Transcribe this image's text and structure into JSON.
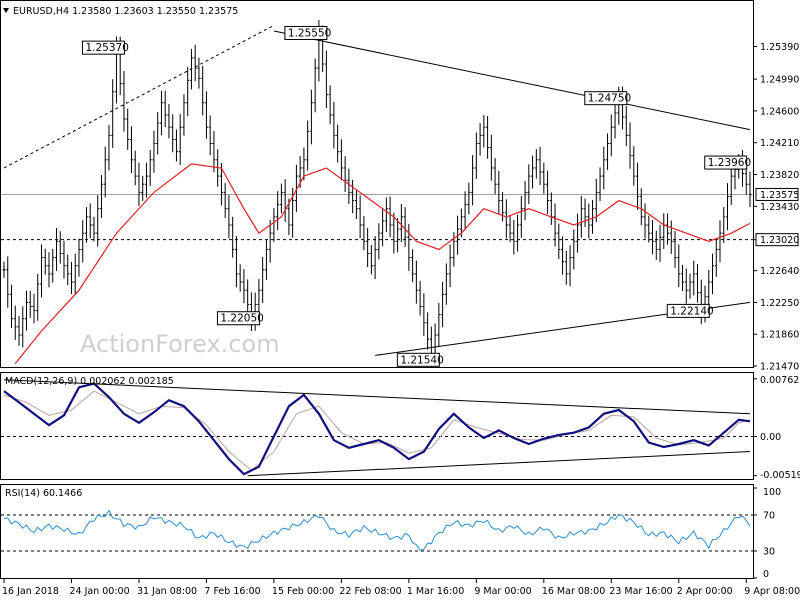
{
  "chart_data": [
    {
      "type": "candlestick",
      "title": "EURUSD,H4  1.23580 1.23603 1.23550 1.23575",
      "watermark": "ActionForex.com",
      "ylim": [
        1.2147,
        1.2574
      ],
      "y_ticks": [
        "1.25390",
        "1.24990",
        "1.24600",
        "1.24210",
        "1.23820",
        "1.23430",
        "1.23020",
        "1.22640",
        "1.22250",
        "1.21860",
        "1.21470"
      ],
      "x_ticks": [
        "16 Jan 2018",
        "24 Jan 00:00",
        "31 Jan 08:00",
        "7 Feb 16:00",
        "15 Feb 00:00",
        "22 Feb 08:00",
        "1 Mar 16:00",
        "9 Mar 00:00",
        "16 Mar 08:00",
        "23 Mar 16:00",
        "2 Apr 00:00",
        "9 Apr 08:00"
      ],
      "current_price": "1.23575",
      "support_level": "1.23020",
      "annotations": [
        "1.25370",
        "1.25550",
        "1.24750",
        "1.23960",
        "1.22050",
        "1.22140",
        "1.21540"
      ],
      "price_path": [
        [
          0,
          1.2265
        ],
        [
          2,
          1.2205
        ],
        [
          4,
          1.2185
        ],
        [
          6,
          1.2225
        ],
        [
          8,
          1.2215
        ],
        [
          10,
          1.228
        ],
        [
          12,
          1.226
        ],
        [
          14,
          1.23
        ],
        [
          16,
          1.227
        ],
        [
          18,
          1.225
        ],
        [
          20,
          1.229
        ],
        [
          22,
          1.233
        ],
        [
          24,
          1.231
        ],
        [
          26,
          1.237
        ],
        [
          28,
          1.243
        ],
        [
          30,
          1.2537
        ],
        [
          32,
          1.245
        ],
        [
          34,
          1.24
        ],
        [
          36,
          1.236
        ],
        [
          38,
          1.238
        ],
        [
          40,
          1.242
        ],
        [
          42,
          1.247
        ],
        [
          44,
          1.244
        ],
        [
          46,
          1.241
        ],
        [
          48,
          1.247
        ],
        [
          50,
          1.2525
        ],
        [
          52,
          1.25
        ],
        [
          54,
          1.244
        ],
        [
          56,
          1.24
        ],
        [
          58,
          1.236
        ],
        [
          60,
          1.232
        ],
        [
          62,
          1.226
        ],
        [
          64,
          1.224
        ],
        [
          66,
          1.2205
        ],
        [
          68,
          1.224
        ],
        [
          70,
          1.229
        ],
        [
          72,
          1.233
        ],
        [
          74,
          1.236
        ],
        [
          76,
          1.232
        ],
        [
          78,
          1.238
        ],
        [
          80,
          1.24
        ],
        [
          82,
          1.247
        ],
        [
          84,
          1.2555
        ],
        [
          86,
          1.248
        ],
        [
          88,
          1.243
        ],
        [
          90,
          1.239
        ],
        [
          92,
          1.236
        ],
        [
          94,
          1.234
        ],
        [
          96,
          1.23
        ],
        [
          98,
          1.227
        ],
        [
          100,
          1.231
        ],
        [
          102,
          1.234
        ],
        [
          104,
          1.23
        ],
        [
          106,
          1.233
        ],
        [
          108,
          1.228
        ],
        [
          110,
          1.224
        ],
        [
          112,
          1.22
        ],
        [
          114,
          1.216
        ],
        [
          116,
          1.221
        ],
        [
          118,
          1.226
        ],
        [
          120,
          1.23
        ],
        [
          122,
          1.233
        ],
        [
          124,
          1.236
        ],
        [
          126,
          1.242
        ],
        [
          128,
          1.244
        ],
        [
          130,
          1.239
        ],
        [
          132,
          1.235
        ],
        [
          134,
          1.232
        ],
        [
          136,
          1.23
        ],
        [
          138,
          1.234
        ],
        [
          140,
          1.238
        ],
        [
          142,
          1.24
        ],
        [
          144,
          1.237
        ],
        [
          146,
          1.233
        ],
        [
          148,
          1.229
        ],
        [
          150,
          1.226
        ],
        [
          152,
          1.23
        ],
        [
          154,
          1.234
        ],
        [
          156,
          1.232
        ],
        [
          158,
          1.236
        ],
        [
          160,
          1.24
        ],
        [
          162,
          1.244
        ],
        [
          164,
          1.2475
        ],
        [
          166,
          1.243
        ],
        [
          168,
          1.238
        ],
        [
          170,
          1.233
        ],
        [
          172,
          1.231
        ],
        [
          174,
          1.229
        ],
        [
          176,
          1.232
        ],
        [
          178,
          1.23
        ],
        [
          180,
          1.226
        ],
        [
          182,
          1.224
        ],
        [
          184,
          1.226
        ],
        [
          186,
          1.2214
        ],
        [
          188,
          1.225
        ],
        [
          190,
          1.229
        ],
        [
          192,
          1.233
        ],
        [
          194,
          1.238
        ],
        [
          196,
          1.2396
        ],
        [
          198,
          1.237
        ],
        [
          199,
          1.23575
        ]
      ],
      "ma_path": [
        [
          3,
          1.215
        ],
        [
          10,
          1.219
        ],
        [
          20,
          1.224
        ],
        [
          30,
          1.231
        ],
        [
          40,
          1.236
        ],
        [
          50,
          1.2395
        ],
        [
          58,
          1.239
        ],
        [
          64,
          1.234
        ],
        [
          68,
          1.231
        ],
        [
          74,
          1.233
        ],
        [
          80,
          1.238
        ],
        [
          86,
          1.239
        ],
        [
          92,
          1.237
        ],
        [
          98,
          1.235
        ],
        [
          104,
          1.233
        ],
        [
          110,
          1.23
        ],
        [
          116,
          1.229
        ],
        [
          122,
          1.231
        ],
        [
          128,
          1.234
        ],
        [
          134,
          1.233
        ],
        [
          140,
          1.234
        ],
        [
          146,
          1.233
        ],
        [
          152,
          1.232
        ],
        [
          158,
          1.233
        ],
        [
          164,
          1.235
        ],
        [
          170,
          1.234
        ],
        [
          176,
          1.232
        ],
        [
          182,
          1.231
        ],
        [
          188,
          1.23
        ],
        [
          194,
          1.231
        ],
        [
          199,
          1.2322
        ]
      ],
      "trendlines": [
        {
          "from": [
            0,
            1.239
          ],
          "to": [
            72,
            1.2565
          ]
        },
        {
          "from": [
            72,
            1.2558
          ],
          "to": [
            199,
            1.2437
          ]
        },
        {
          "from": [
            99,
            1.216
          ],
          "to": [
            199,
            1.2225
          ]
        }
      ]
    },
    {
      "type": "line",
      "title": "MACD(12,26,9) 0.002062 0.002185",
      "ylim": [
        -0.0055,
        0.008
      ],
      "y_ticks": [
        "0.007627",
        "0.00",
        "-0.005196"
      ],
      "macd": [
        [
          0,
          0.006
        ],
        [
          4,
          0.0045
        ],
        [
          8,
          0.003
        ],
        [
          12,
          0.0015
        ],
        [
          16,
          0.0028
        ],
        [
          20,
          0.0065
        ],
        [
          24,
          0.007
        ],
        [
          28,
          0.0052
        ],
        [
          32,
          0.003
        ],
        [
          36,
          0.0018
        ],
        [
          40,
          0.0032
        ],
        [
          44,
          0.0048
        ],
        [
          48,
          0.004
        ],
        [
          52,
          0.002
        ],
        [
          56,
          -0.0005
        ],
        [
          60,
          -0.003
        ],
        [
          64,
          -0.005
        ],
        [
          68,
          -0.004
        ],
        [
          72,
          0.0
        ],
        [
          76,
          0.004
        ],
        [
          80,
          0.0055
        ],
        [
          84,
          0.003
        ],
        [
          88,
          -0.0005
        ],
        [
          92,
          -0.0015
        ],
        [
          96,
          -0.001
        ],
        [
          100,
          -0.0005
        ],
        [
          104,
          -0.0015
        ],
        [
          108,
          -0.003
        ],
        [
          112,
          -0.002
        ],
        [
          116,
          0.001
        ],
        [
          120,
          0.003
        ],
        [
          124,
          0.0012
        ],
        [
          128,
          -0.0002
        ],
        [
          132,
          0.0008
        ],
        [
          136,
          -0.0002
        ],
        [
          140,
          -0.001
        ],
        [
          144,
          -0.0003
        ],
        [
          148,
          0.0002
        ],
        [
          152,
          0.0005
        ],
        [
          156,
          0.0012
        ],
        [
          160,
          0.003
        ],
        [
          164,
          0.0035
        ],
        [
          168,
          0.002
        ],
        [
          172,
          -0.0008
        ],
        [
          176,
          -0.0014
        ],
        [
          180,
          -0.001
        ],
        [
          184,
          -0.0005
        ],
        [
          188,
          -0.0012
        ],
        [
          192,
          0.0005
        ],
        [
          196,
          0.0022
        ],
        [
          199,
          0.002
        ]
      ],
      "signal": [
        [
          0,
          0.0055
        ],
        [
          6,
          0.0045
        ],
        [
          12,
          0.0028
        ],
        [
          18,
          0.0035
        ],
        [
          24,
          0.006
        ],
        [
          30,
          0.0045
        ],
        [
          36,
          0.003
        ],
        [
          42,
          0.004
        ],
        [
          48,
          0.0038
        ],
        [
          54,
          0.0015
        ],
        [
          60,
          -0.002
        ],
        [
          66,
          -0.0045
        ],
        [
          72,
          -0.002
        ],
        [
          78,
          0.003
        ],
        [
          84,
          0.004
        ],
        [
          90,
          0.0005
        ],
        [
          96,
          -0.001
        ],
        [
          102,
          -0.0008
        ],
        [
          108,
          -0.0022
        ],
        [
          114,
          -0.0015
        ],
        [
          120,
          0.0022
        ],
        [
          126,
          0.0012
        ],
        [
          132,
          0.0004
        ],
        [
          138,
          -0.0004
        ],
        [
          144,
          -0.0005
        ],
        [
          150,
          0.0003
        ],
        [
          156,
          0.0008
        ],
        [
          162,
          0.0028
        ],
        [
          168,
          0.0026
        ],
        [
          174,
          -0.0002
        ],
        [
          180,
          -0.0011
        ],
        [
          186,
          -0.0008
        ],
        [
          192,
          -0.0002
        ],
        [
          196,
          0.0018
        ],
        [
          199,
          0.0022
        ]
      ],
      "trendlines": [
        {
          "from": [
            0,
            0.0075
          ],
          "to": [
            199,
            0.003
          ]
        },
        {
          "from": [
            65,
            -0.0052
          ],
          "to": [
            199,
            -0.002
          ]
        }
      ]
    },
    {
      "type": "line",
      "title": "RSI(14) 60.1466",
      "ylim": [
        0,
        100
      ],
      "y_ticks": [
        "100",
        "70",
        "30",
        "0"
      ],
      "levels": [
        70,
        30
      ],
      "rsi": [
        [
          0,
          66
        ],
        [
          4,
          60
        ],
        [
          8,
          52
        ],
        [
          12,
          58
        ],
        [
          16,
          54
        ],
        [
          20,
          48
        ],
        [
          24,
          66
        ],
        [
          28,
          72
        ],
        [
          32,
          60
        ],
        [
          36,
          56
        ],
        [
          40,
          68
        ],
        [
          44,
          62
        ],
        [
          48,
          58
        ],
        [
          52,
          44
        ],
        [
          56,
          50
        ],
        [
          60,
          40
        ],
        [
          64,
          34
        ],
        [
          68,
          42
        ],
        [
          72,
          50
        ],
        [
          76,
          56
        ],
        [
          80,
          62
        ],
        [
          84,
          70
        ],
        [
          88,
          52
        ],
        [
          92,
          48
        ],
        [
          96,
          56
        ],
        [
          100,
          50
        ],
        [
          104,
          44
        ],
        [
          108,
          48
        ],
        [
          110,
          34
        ],
        [
          112,
          32
        ],
        [
          116,
          50
        ],
        [
          120,
          62
        ],
        [
          124,
          58
        ],
        [
          128,
          64
        ],
        [
          132,
          52
        ],
        [
          136,
          58
        ],
        [
          140,
          48
        ],
        [
          144,
          56
        ],
        [
          148,
          44
        ],
        [
          152,
          50
        ],
        [
          156,
          52
        ],
        [
          160,
          60
        ],
        [
          164,
          70
        ],
        [
          168,
          62
        ],
        [
          172,
          48
        ],
        [
          176,
          50
        ],
        [
          180,
          40
        ],
        [
          184,
          50
        ],
        [
          188,
          36
        ],
        [
          192,
          52
        ],
        [
          196,
          70
        ],
        [
          199,
          60
        ]
      ]
    }
  ]
}
